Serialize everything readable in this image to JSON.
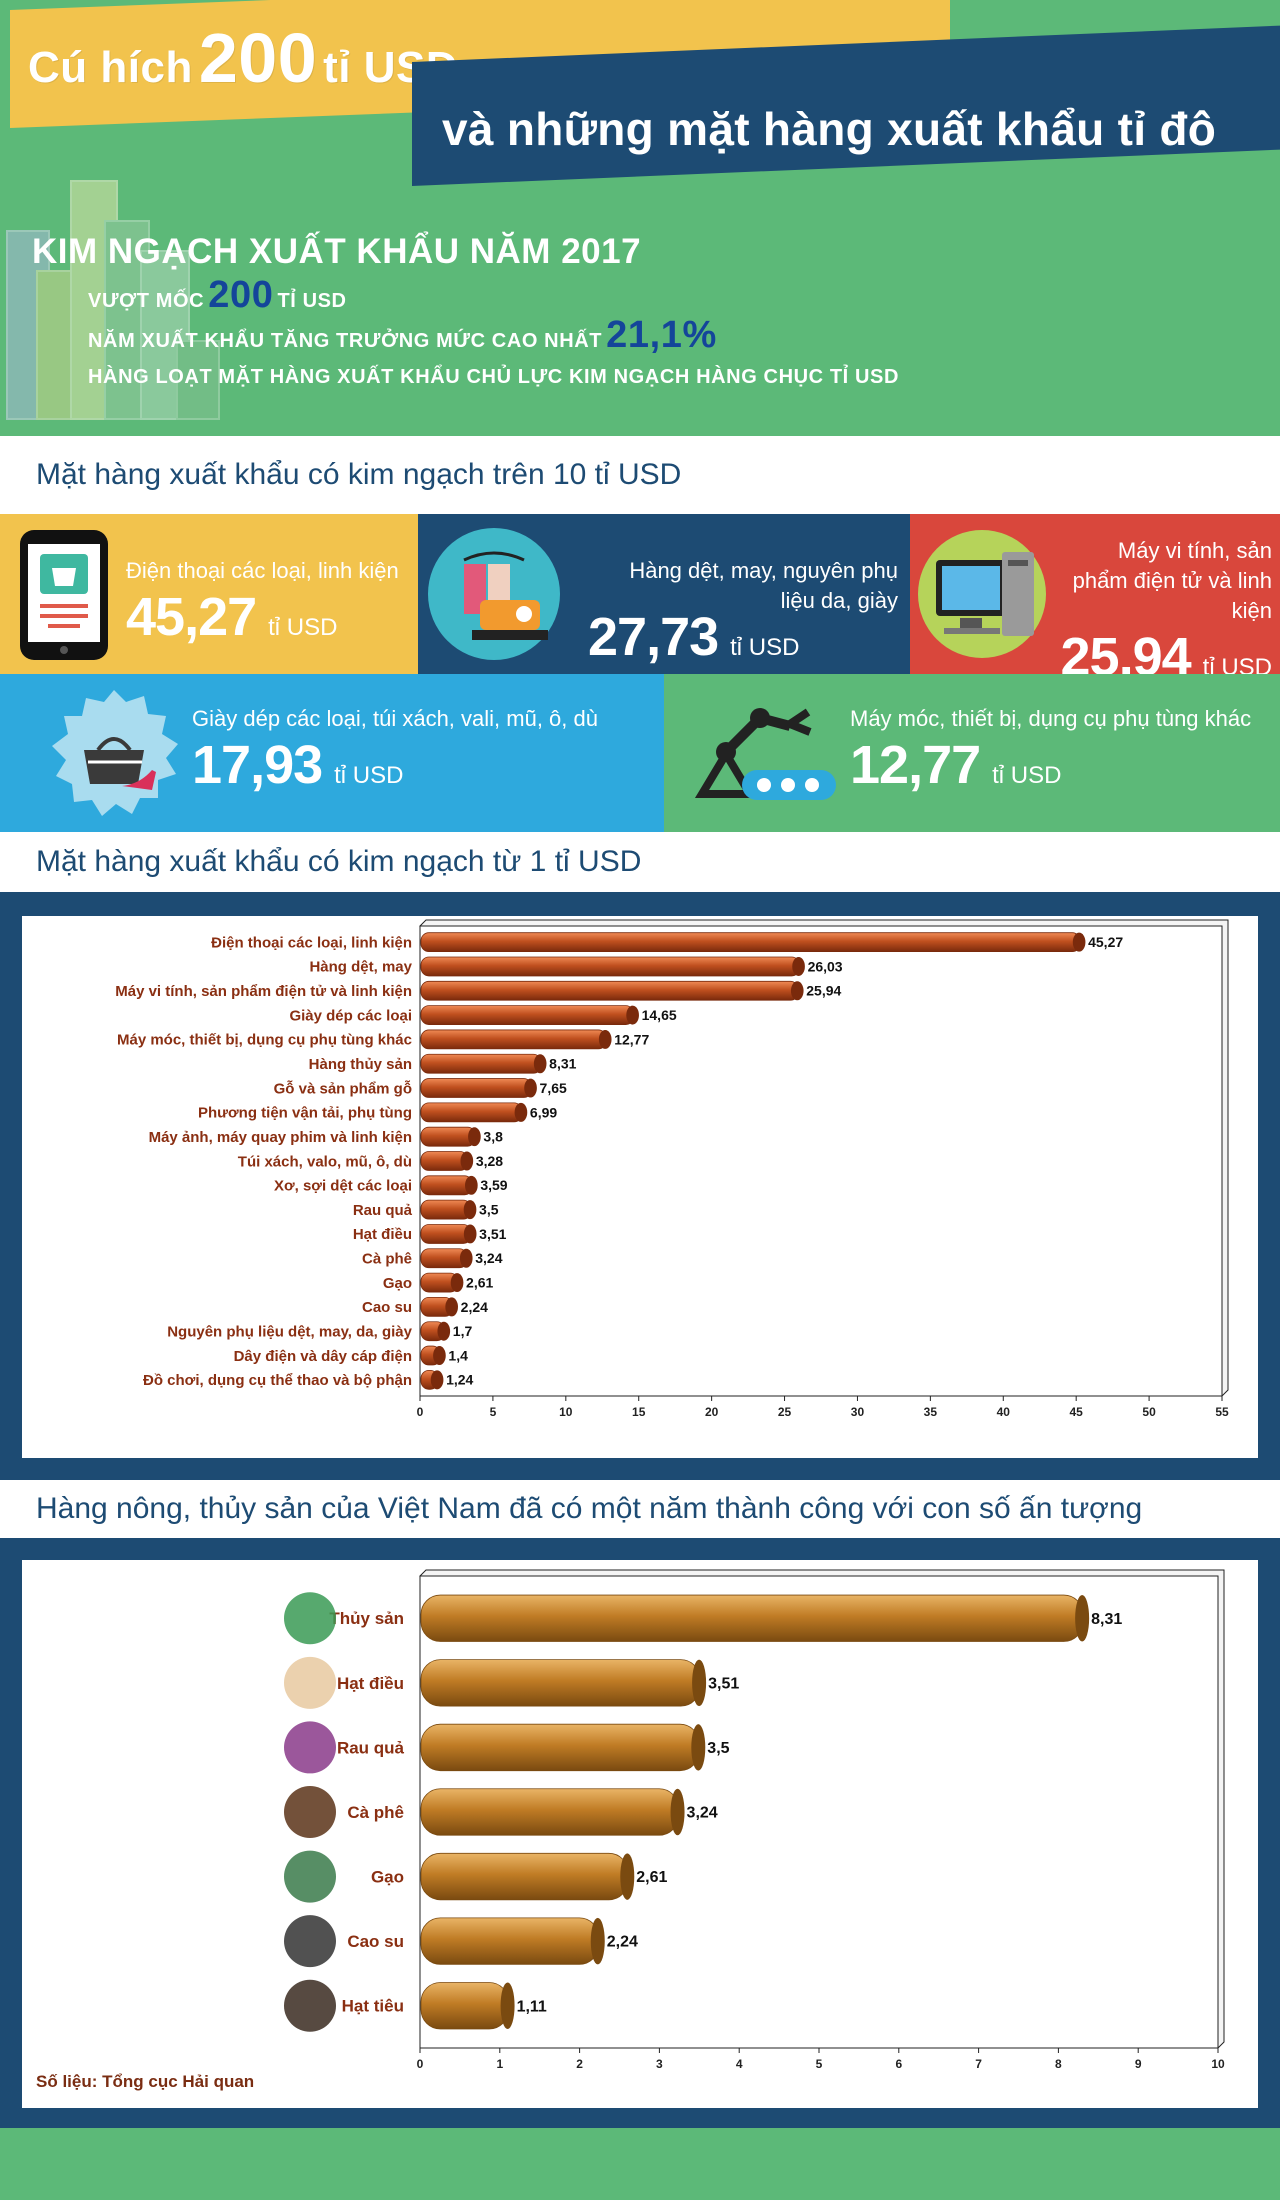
{
  "header": {
    "title_prefix": "Cú hích",
    "title_number": "200",
    "title_suffix": "tỉ USD",
    "title_line2": "và những mặt hàng xuất khẩu tỉ đô",
    "headline": "KIM NGẠCH XUẤT KHẨU NĂM 2017",
    "sub1_prefix": "VƯỢT MỐC",
    "sub1_value": "200",
    "sub1_suffix": "TỈ USD",
    "sub2_prefix": "NĂM XUẤT KHẨU TĂNG TRƯỞNG MỨC CAO NHẤT",
    "sub2_value": "21,1%",
    "sub3": "HÀNG LOẠT MẶT HÀNG XUẤT KHẨU CHỦ LỰC KIM NGẠCH HÀNG CHỤC TỈ USD"
  },
  "section1": {
    "title": "Mặt hàng xuất khẩu có kim ngạch trên 10 tỉ USD"
  },
  "cards": {
    "phone": {
      "label": "Điện thoại các loại, linh kiện",
      "value": "45,27",
      "unit": "tỉ USD"
    },
    "textile": {
      "label": "Hàng dệt, may, nguyên phụ liệu da, giày",
      "value": "27,73",
      "unit": "tỉ USD"
    },
    "computer": {
      "label": "Máy vi tính, sản phẩm điện tử và linh kiện",
      "value": "25,94",
      "unit": "tỉ USD"
    },
    "shoes": {
      "label": "Giày dép các loại, túi xách, vali, mũ, ô, dù",
      "value": "17,93",
      "unit": "tỉ USD"
    },
    "machine": {
      "label": "Máy móc, thiết bị, dụng cụ phụ tùng khác",
      "value": "12,77",
      "unit": "tỉ USD"
    }
  },
  "section2": {
    "title": "Mặt hàng xuất khẩu có kim ngạch từ 1 tỉ USD"
  },
  "section3": {
    "title": "Hàng nông, thủy sản của Việt Nam đã có một năm thành công với con số ấn tượng"
  },
  "source": "Số liệu: Tổng cục Hải quan",
  "colors": {
    "green": "#5cb978",
    "yellow": "#f2c34d",
    "navy": "#1d4b73",
    "red": "#d9473c",
    "sky": "#2ea9dd",
    "bar1": "#c0501f",
    "bar2": "#c07c25",
    "label": "#8a2f12"
  },
  "chart_data": [
    {
      "type": "bar",
      "orientation": "horizontal",
      "categories": [
        "Điện thoại các loại, linh kiện",
        "Hàng dệt, may",
        "Máy vi tính, sản phẩm điện tử và linh kiện",
        "Giày dép các loại",
        "Máy móc, thiết bị, dụng cụ phụ tùng khác",
        "Hàng thủy sản",
        "Gỗ và sản phẩm gỗ",
        "Phương tiện vận tải, phụ tùng",
        "Máy ảnh, máy quay phim và linh kiện",
        "Túi xách, valo, mũ, ô, dù",
        "Xơ, sợi dệt các loại",
        "Rau quả",
        "Hạt điều",
        "Cà phê",
        "Gạo",
        "Cao su",
        "Nguyên phụ liệu dệt, may, da, giày",
        "Dây điện và dây cáp điện",
        "Đồ chơi, dụng cụ thể thao và bộ phận"
      ],
      "values": [
        45.27,
        26.03,
        25.94,
        14.65,
        12.77,
        8.31,
        7.65,
        6.99,
        3.8,
        3.28,
        3.59,
        3.5,
        3.51,
        3.24,
        2.61,
        2.24,
        1.7,
        1.4,
        1.24
      ],
      "value_labels": [
        "45,27",
        "26,03",
        "25,94",
        "14,65",
        "12,77",
        "8,31",
        "7,65",
        "6,99",
        "3,8",
        "3,28",
        "3,59",
        "3,5",
        "3,51",
        "3,24",
        "2,61",
        "2,24",
        "1,7",
        "1,4",
        "1,24"
      ],
      "xlim": [
        0,
        55
      ],
      "xticks": [
        "0",
        "5",
        "10",
        "15",
        "20",
        "25",
        "30",
        "35",
        "40",
        "45",
        "50",
        "55"
      ]
    },
    {
      "type": "bar",
      "orientation": "horizontal",
      "categories": [
        "Thủy sản",
        "Hạt điều",
        "Rau quả",
        "Cà phê",
        "Gạo",
        "Cao su",
        "Hạt tiêu"
      ],
      "values": [
        8.31,
        3.51,
        3.5,
        3.24,
        2.61,
        2.24,
        1.11
      ],
      "value_labels": [
        "8,31",
        "3,51",
        "3,5",
        "3,24",
        "2,61",
        "2,24",
        "1,11"
      ],
      "xlim": [
        0,
        10
      ],
      "xticks": [
        "0",
        "1",
        "2",
        "3",
        "4",
        "5",
        "6",
        "7",
        "8",
        "9",
        "10"
      ]
    }
  ]
}
